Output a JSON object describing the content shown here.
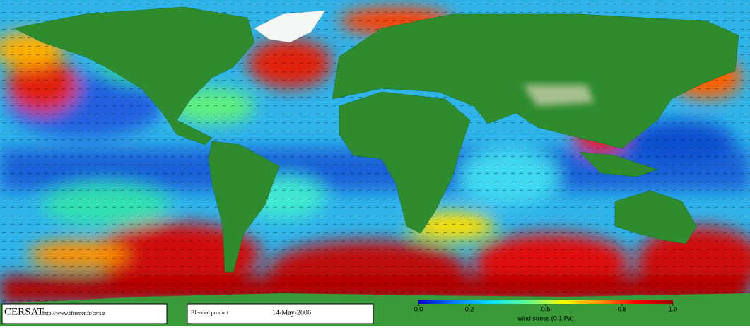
{
  "footer": {
    "logo": "CERSAT",
    "url": "http://www.ifremer.fr/cersat",
    "product": "Blended product",
    "date": "14-May-2006"
  },
  "colorbar": {
    "range": [
      0,
      1
    ],
    "ticks": [
      {
        "value": 0,
        "label": "0.0"
      },
      0.2,
      0.5,
      0.8,
      {
        "value": 1,
        "label": "1.0"
      }
    ],
    "label": "wind stress (0.1 Pa)",
    "colors": [
      "#0000c8",
      "#0080ff",
      "#00e0ff",
      "#60ff90",
      "#ffff00",
      "#ff9000",
      "#ff0000",
      "#a00000"
    ]
  }
}
